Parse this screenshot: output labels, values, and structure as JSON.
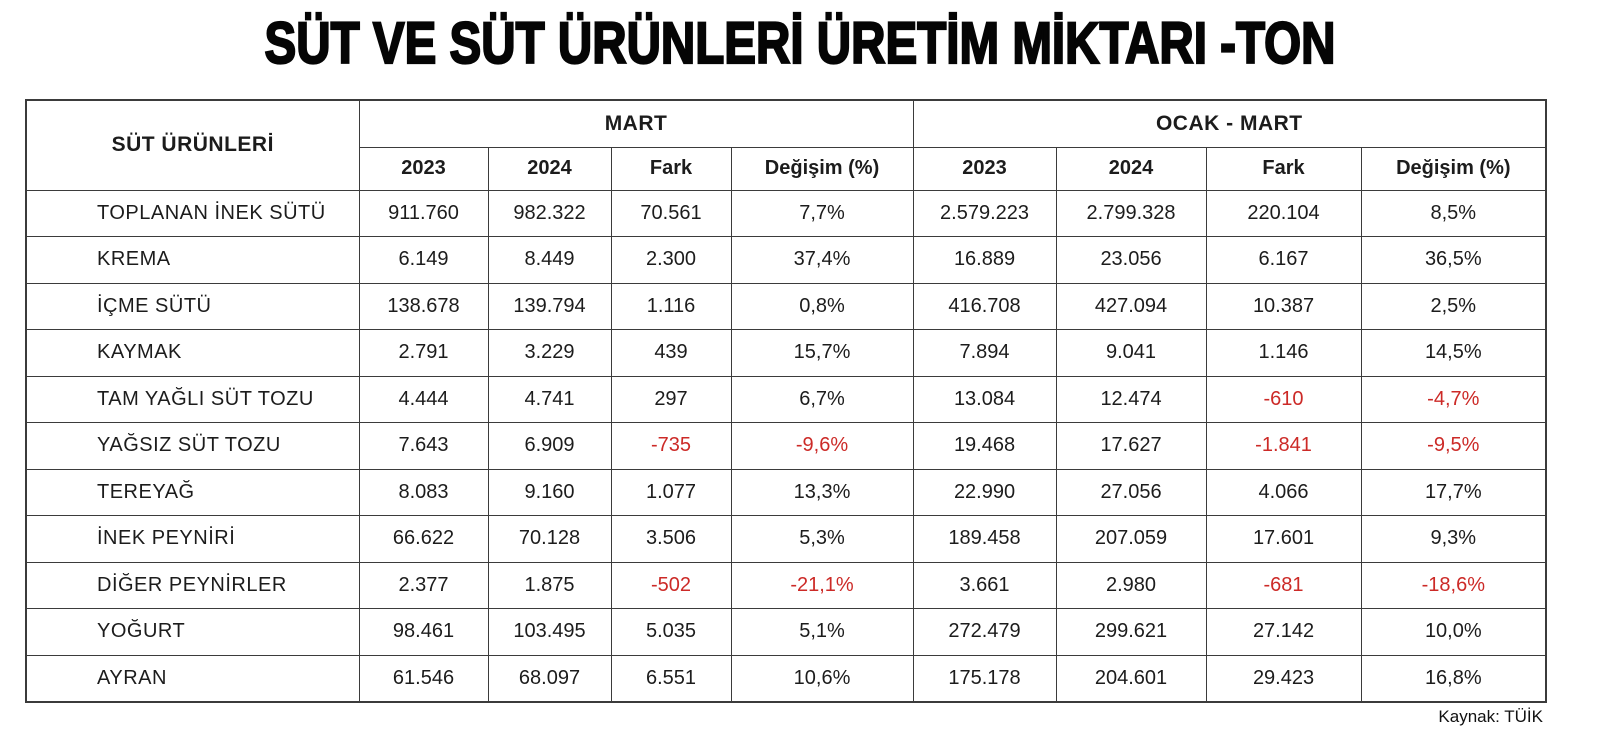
{
  "title": "SÜT VE SÜT ÜRÜNLERİ ÜRETİM MİKTARI -TON",
  "source": "Kaynak: TÜİK",
  "colors": {
    "negative": "#cc2a27",
    "text": "#1c1c1c",
    "border": "#3b3b3b",
    "background": "#ffffff"
  },
  "chart_data": {
    "type": "table",
    "title": "SÜT VE SÜT ÜRÜNLERİ ÜRETİM MİKTARI -TON",
    "row_header": "SÜT ÜRÜNLERİ",
    "column_groups": [
      {
        "label": "MART",
        "span": 4
      },
      {
        "label": "OCAK - MART",
        "span": 4
      }
    ],
    "columns": [
      "2023",
      "2024",
      "Fark",
      "Değişim (%)",
      "2023",
      "2024",
      "Fark",
      "Değişim (%)"
    ],
    "rows": [
      {
        "label": "TOPLANAN İNEK SÜTÜ",
        "values": [
          "911.760",
          "982.322",
          "70.561",
          "7,7%",
          "2.579.223",
          "2.799.328",
          "220.104",
          "8,5%"
        ]
      },
      {
        "label": "KREMA",
        "values": [
          "6.149",
          "8.449",
          "2.300",
          "37,4%",
          "16.889",
          "23.056",
          "6.167",
          "36,5%"
        ]
      },
      {
        "label": "İÇME SÜTÜ",
        "values": [
          "138.678",
          "139.794",
          "1.116",
          "0,8%",
          "416.708",
          "427.094",
          "10.387",
          "2,5%"
        ]
      },
      {
        "label": "KAYMAK",
        "values": [
          "2.791",
          "3.229",
          "439",
          "15,7%",
          "7.894",
          "9.041",
          "1.146",
          "14,5%"
        ]
      },
      {
        "label": "TAM YAĞLI SÜT TOZU",
        "values": [
          "4.444",
          "4.741",
          "297",
          "6,7%",
          "13.084",
          "12.474",
          "-610",
          "-4,7%"
        ]
      },
      {
        "label": "YAĞSIZ SÜT TOZU",
        "values": [
          "7.643",
          "6.909",
          "-735",
          "-9,6%",
          "19.468",
          "17.627",
          "-1.841",
          "-9,5%"
        ]
      },
      {
        "label": "TEREYAĞ",
        "values": [
          "8.083",
          "9.160",
          "1.077",
          "13,3%",
          "22.990",
          "27.056",
          "4.066",
          "17,7%"
        ]
      },
      {
        "label": "İNEK PEYNİRİ",
        "values": [
          "66.622",
          "70.128",
          "3.506",
          "5,3%",
          "189.458",
          "207.059",
          "17.601",
          "9,3%"
        ]
      },
      {
        "label": "DİĞER PEYNİRLER",
        "values": [
          "2.377",
          "1.875",
          "-502",
          "-21,1%",
          "3.661",
          "2.980",
          "-681",
          "-18,6%"
        ]
      },
      {
        "label": "YOĞURT",
        "values": [
          "98.461",
          "103.495",
          "5.035",
          "5,1%",
          "272.479",
          "299.621",
          "27.142",
          "10,0%"
        ]
      },
      {
        "label": "AYRAN",
        "values": [
          "61.546",
          "68.097",
          "6.551",
          "10,6%",
          "175.178",
          "204.601",
          "29.423",
          "16,8%"
        ]
      }
    ]
  }
}
